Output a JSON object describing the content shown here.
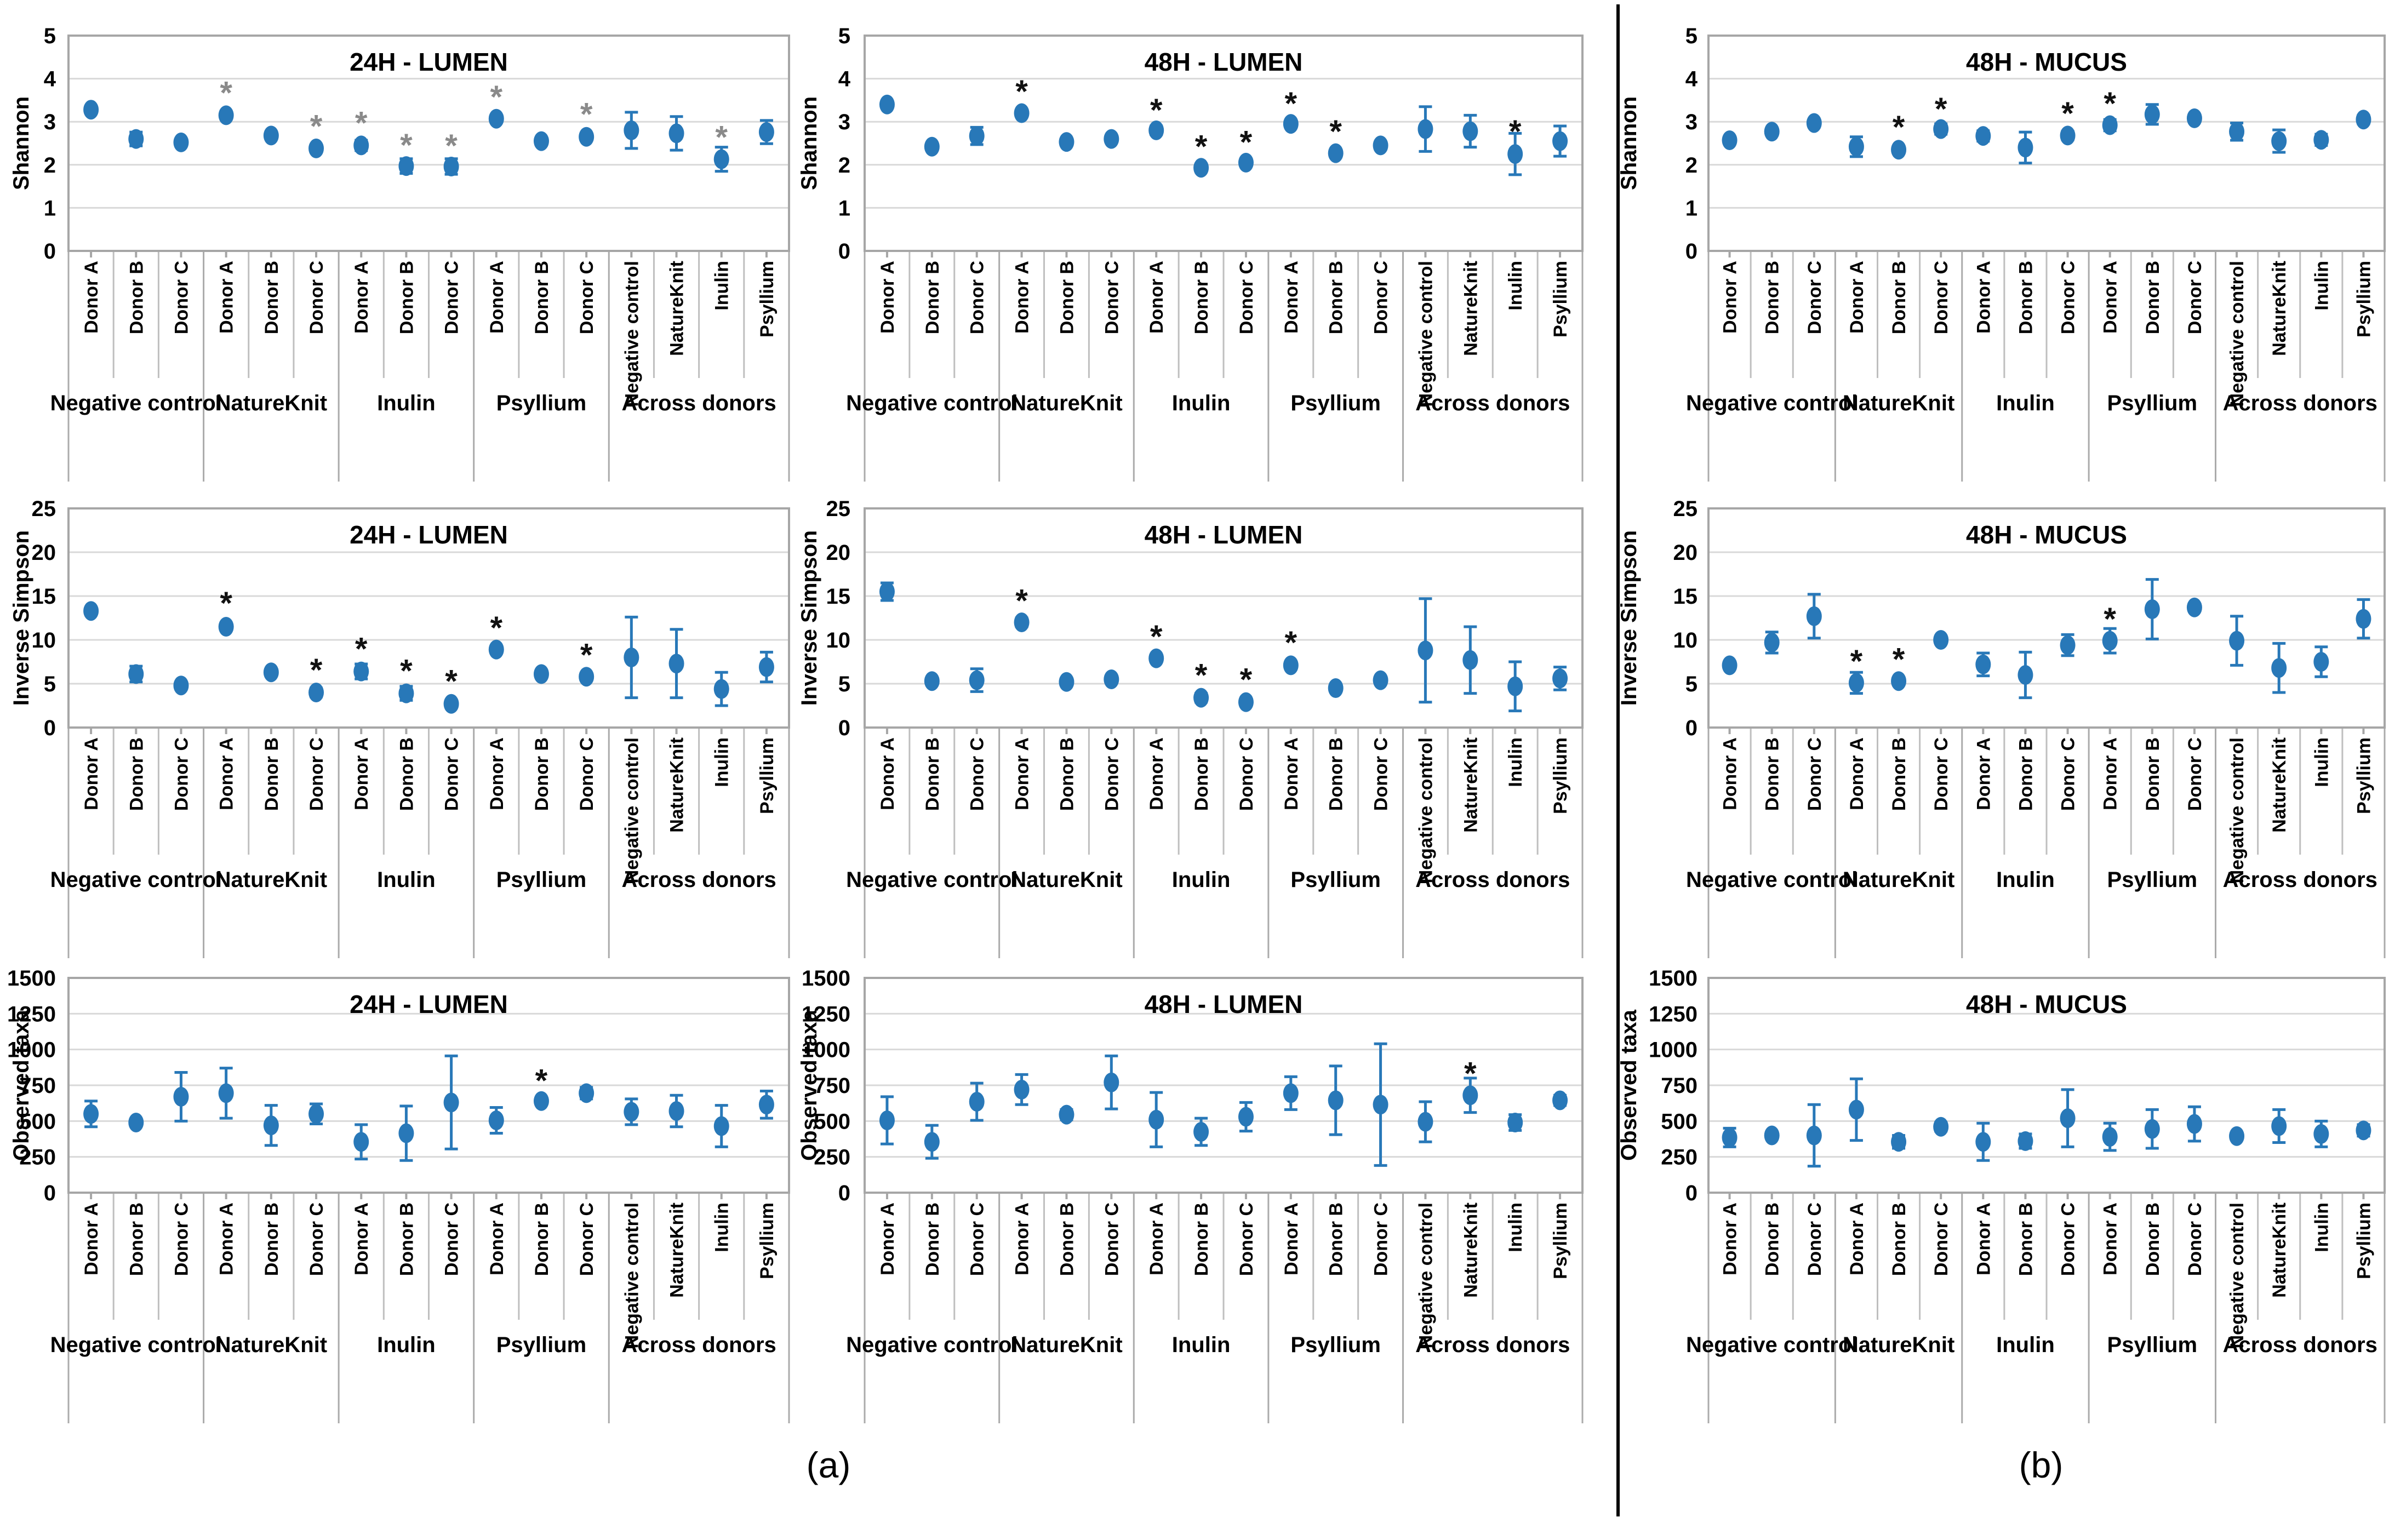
{
  "figure": {
    "panel_a_label": "(a)",
    "panel_b_label": "(b)"
  },
  "colors": {
    "marker": "#2878B8",
    "error_bar": "#2878B8",
    "asterisk_black": "#111111",
    "asterisk_gray": "#8a8a8a",
    "gridline": "#D9D9D9",
    "plot_border": "#A6A6A6",
    "category_line": "#BFBFBF",
    "group_line": "#ABABAB",
    "tick_stub": "#A6A6A6",
    "text": "#000000",
    "background": "#FFFFFF"
  },
  "categories": {
    "donor_labels": [
      "Donor A",
      "Donor B",
      "Donor C",
      "Donor A",
      "Donor B",
      "Donor C",
      "Donor A",
      "Donor B",
      "Donor C",
      "Donor A",
      "Donor B",
      "Donor C",
      "Negative control",
      "NatureKnit",
      "Inulin",
      "Psyllium"
    ],
    "groups": [
      {
        "label": "Negative control",
        "span": 3
      },
      {
        "label": "NatureKnit",
        "span": 3
      },
      {
        "label": "Inulin",
        "span": 3
      },
      {
        "label": "Psyllium",
        "span": 3
      },
      {
        "label": "Across donors",
        "span": 4
      }
    ]
  },
  "chart_data": [
    {
      "type": "scatter",
      "panel": "a",
      "row": 0,
      "col": 0,
      "title": "24H - LUMEN",
      "ylabel": "Shannon",
      "ylim": [
        0,
        5
      ],
      "ystep": 1,
      "grid": true,
      "sig_color": "gray",
      "points": [
        {
          "v": 3.28,
          "e": 0,
          "s": null
        },
        {
          "v": 2.6,
          "e": 0.16,
          "s": null
        },
        {
          "v": 2.52,
          "e": 0,
          "s": null
        },
        {
          "v": 3.15,
          "e": 0,
          "s": 3.8
        },
        {
          "v": 2.68,
          "e": 0,
          "s": null
        },
        {
          "v": 2.38,
          "e": 0,
          "s": 3.02
        },
        {
          "v": 2.45,
          "e": 0.12,
          "s": 3.1
        },
        {
          "v": 1.97,
          "e": 0.17,
          "s": 2.58
        },
        {
          "v": 1.96,
          "e": 0.18,
          "s": 2.57
        },
        {
          "v": 3.07,
          "e": 0,
          "s": 3.7
        },
        {
          "v": 2.55,
          "e": 0,
          "s": null
        },
        {
          "v": 2.65,
          "e": 0,
          "s": 3.3
        },
        {
          "v": 2.8,
          "e": 0.42,
          "s": null
        },
        {
          "v": 2.73,
          "e": 0.39,
          "s": null
        },
        {
          "v": 2.13,
          "e": 0.28,
          "s": 2.77
        },
        {
          "v": 2.76,
          "e": 0.27,
          "s": null
        }
      ]
    },
    {
      "type": "scatter",
      "panel": "a",
      "row": 0,
      "col": 1,
      "title": "48H - LUMEN",
      "ylabel": "Shannon",
      "ylim": [
        0,
        5
      ],
      "ystep": 1,
      "grid": true,
      "sig_color": "black",
      "points": [
        {
          "v": 3.4,
          "e": 0,
          "s": null
        },
        {
          "v": 2.42,
          "e": 0,
          "s": null
        },
        {
          "v": 2.67,
          "e": 0.2,
          "s": null
        },
        {
          "v": 3.2,
          "e": 0,
          "s": 3.83
        },
        {
          "v": 2.53,
          "e": 0,
          "s": null
        },
        {
          "v": 2.6,
          "e": 0,
          "s": null
        },
        {
          "v": 2.8,
          "e": 0.1,
          "s": 3.4
        },
        {
          "v": 1.93,
          "e": 0.08,
          "s": 2.55
        },
        {
          "v": 2.05,
          "e": 0.07,
          "s": 2.65
        },
        {
          "v": 2.95,
          "e": 0,
          "s": 3.55
        },
        {
          "v": 2.27,
          "e": 0.06,
          "s": 2.9
        },
        {
          "v": 2.45,
          "e": 0,
          "s": null
        },
        {
          "v": 2.83,
          "e": 0.52,
          "s": null
        },
        {
          "v": 2.78,
          "e": 0.37,
          "s": null
        },
        {
          "v": 2.25,
          "e": 0.48,
          "s": 2.9
        },
        {
          "v": 2.55,
          "e": 0.35,
          "s": null
        }
      ]
    },
    {
      "type": "scatter",
      "panel": "b",
      "row": 0,
      "col": 2,
      "title": "48H - MUCUS",
      "ylabel": "Shannon",
      "ylim": [
        0,
        5
      ],
      "ystep": 1,
      "grid": true,
      "sig_color": "black",
      "points": [
        {
          "v": 2.57,
          "e": 0.07,
          "s": null
        },
        {
          "v": 2.77,
          "e": 0.06,
          "s": null
        },
        {
          "v": 2.97,
          "e": 0.08,
          "s": null
        },
        {
          "v": 2.42,
          "e": 0.23,
          "s": null
        },
        {
          "v": 2.35,
          "e": 0.08,
          "s": 3.0
        },
        {
          "v": 2.83,
          "e": 0.12,
          "s": 3.42
        },
        {
          "v": 2.67,
          "e": 0.12,
          "s": null
        },
        {
          "v": 2.4,
          "e": 0.36,
          "s": null
        },
        {
          "v": 2.68,
          "e": 0.1,
          "s": 3.32
        },
        {
          "v": 2.92,
          "e": 0.13,
          "s": 3.55
        },
        {
          "v": 3.17,
          "e": 0.23,
          "s": null
        },
        {
          "v": 3.08,
          "e": 0.08,
          "s": null
        },
        {
          "v": 2.77,
          "e": 0.2,
          "s": null
        },
        {
          "v": 2.55,
          "e": 0.26,
          "s": null
        },
        {
          "v": 2.58,
          "e": 0.13,
          "s": null
        },
        {
          "v": 3.05,
          "e": 0.1,
          "s": null
        }
      ]
    },
    {
      "type": "scatter",
      "panel": "a",
      "row": 1,
      "col": 0,
      "title": "24H - LUMEN",
      "ylabel": "Inverse Simpson",
      "ylim": [
        0,
        25
      ],
      "ystep": 5,
      "grid": true,
      "sig_color": "black",
      "points": [
        {
          "v": 13.3,
          "e": 0,
          "s": null
        },
        {
          "v": 6.1,
          "e": 0.9,
          "s": null
        },
        {
          "v": 4.8,
          "e": 0.3,
          "s": null
        },
        {
          "v": 11.5,
          "e": 0.4,
          "s": 14.8
        },
        {
          "v": 6.3,
          "e": 0.3,
          "s": null
        },
        {
          "v": 4.0,
          "e": 0.5,
          "s": 7.2
        },
        {
          "v": 6.4,
          "e": 0.85,
          "s": 9.6
        },
        {
          "v": 3.9,
          "e": 0.8,
          "s": 7.1
        },
        {
          "v": 2.7,
          "e": 0.35,
          "s": 5.9
        },
        {
          "v": 8.9,
          "e": 0.3,
          "s": 12.0
        },
        {
          "v": 6.1,
          "e": 0.3,
          "s": null
        },
        {
          "v": 5.8,
          "e": 0.4,
          "s": 8.9
        },
        {
          "v": 8.0,
          "e": 4.6,
          "s": null
        },
        {
          "v": 7.3,
          "e": 3.9,
          "s": null
        },
        {
          "v": 4.4,
          "e": 1.9,
          "s": null
        },
        {
          "v": 6.9,
          "e": 1.7,
          "s": null
        }
      ]
    },
    {
      "type": "scatter",
      "panel": "a",
      "row": 1,
      "col": 1,
      "title": "48H - LUMEN",
      "ylabel": "Inverse Simpson",
      "ylim": [
        0,
        25
      ],
      "ystep": 5,
      "grid": true,
      "sig_color": "black",
      "points": [
        {
          "v": 15.5,
          "e": 1.0,
          "s": null
        },
        {
          "v": 5.3,
          "e": 0.3,
          "s": null
        },
        {
          "v": 5.4,
          "e": 1.3,
          "s": null
        },
        {
          "v": 12.0,
          "e": 0.5,
          "s": 15.1
        },
        {
          "v": 5.2,
          "e": 0.3,
          "s": null
        },
        {
          "v": 5.5,
          "e": 0.3,
          "s": null
        },
        {
          "v": 7.9,
          "e": 0.4,
          "s": 11.0
        },
        {
          "v": 3.4,
          "e": 0.5,
          "s": 6.6
        },
        {
          "v": 2.9,
          "e": 0.4,
          "s": 6.1
        },
        {
          "v": 7.1,
          "e": 0.3,
          "s": 10.3
        },
        {
          "v": 4.5,
          "e": 0.3,
          "s": null
        },
        {
          "v": 5.4,
          "e": 0.3,
          "s": null
        },
        {
          "v": 8.8,
          "e": 5.9,
          "s": null
        },
        {
          "v": 7.7,
          "e": 3.8,
          "s": null
        },
        {
          "v": 4.7,
          "e": 2.8,
          "s": null
        },
        {
          "v": 5.6,
          "e": 1.3,
          "s": null
        }
      ]
    },
    {
      "type": "scatter",
      "panel": "b",
      "row": 1,
      "col": 2,
      "title": "48H - MUCUS",
      "ylabel": "Inverse Simpson",
      "ylim": [
        0,
        25
      ],
      "ystep": 5,
      "grid": true,
      "sig_color": "black",
      "points": [
        {
          "v": 7.1,
          "e": 0.3,
          "s": null
        },
        {
          "v": 9.7,
          "e": 1.2,
          "s": null
        },
        {
          "v": 12.7,
          "e": 2.5,
          "s": null
        },
        {
          "v": 5.1,
          "e": 1.2,
          "s": 8.2
        },
        {
          "v": 5.3,
          "e": 0.4,
          "s": 8.4
        },
        {
          "v": 10.0,
          "e": 0.4,
          "s": null
        },
        {
          "v": 7.2,
          "e": 1.3,
          "s": null
        },
        {
          "v": 6.0,
          "e": 2.6,
          "s": null
        },
        {
          "v": 9.4,
          "e": 1.2,
          "s": null
        },
        {
          "v": 9.9,
          "e": 1.4,
          "s": 13.0
        },
        {
          "v": 13.5,
          "e": 3.4,
          "s": null
        },
        {
          "v": 13.7,
          "e": 0.3,
          "s": null
        },
        {
          "v": 9.9,
          "e": 2.8,
          "s": null
        },
        {
          "v": 6.8,
          "e": 2.8,
          "s": null
        },
        {
          "v": 7.5,
          "e": 1.7,
          "s": null
        },
        {
          "v": 12.4,
          "e": 2.2,
          "s": null
        }
      ]
    },
    {
      "type": "scatter",
      "panel": "a",
      "row": 2,
      "col": 0,
      "title": "24H - LUMEN",
      "ylabel": "Observed taxa",
      "ylim": [
        0,
        1500
      ],
      "ystep": 250,
      "grid": true,
      "sig_color": "black",
      "points": [
        {
          "v": 550,
          "e": 90,
          "s": null
        },
        {
          "v": 490,
          "e": 0,
          "s": null
        },
        {
          "v": 670,
          "e": 170,
          "s": null
        },
        {
          "v": 695,
          "e": 175,
          "s": null
        },
        {
          "v": 470,
          "e": 140,
          "s": null
        },
        {
          "v": 550,
          "e": 70,
          "s": null
        },
        {
          "v": 355,
          "e": 120,
          "s": null
        },
        {
          "v": 415,
          "e": 190,
          "s": null
        },
        {
          "v": 630,
          "e": 325,
          "s": null
        },
        {
          "v": 505,
          "e": 90,
          "s": null
        },
        {
          "v": 640,
          "e": 25,
          "s": 820
        },
        {
          "v": 695,
          "e": 40,
          "s": null
        },
        {
          "v": 565,
          "e": 90,
          "s": null
        },
        {
          "v": 570,
          "e": 110,
          "s": null
        },
        {
          "v": 465,
          "e": 145,
          "s": null
        },
        {
          "v": 615,
          "e": 95,
          "s": null
        }
      ]
    },
    {
      "type": "scatter",
      "panel": "a",
      "row": 2,
      "col": 1,
      "title": "48H - LUMEN",
      "ylabel": "Observed taxa",
      "ylim": [
        0,
        1500
      ],
      "ystep": 250,
      "grid": true,
      "sig_color": "black",
      "points": [
        {
          "v": 505,
          "e": 165,
          "s": null
        },
        {
          "v": 355,
          "e": 115,
          "s": null
        },
        {
          "v": 635,
          "e": 130,
          "s": null
        },
        {
          "v": 720,
          "e": 105,
          "s": null
        },
        {
          "v": 545,
          "e": 35,
          "s": null
        },
        {
          "v": 770,
          "e": 185,
          "s": null
        },
        {
          "v": 510,
          "e": 190,
          "s": null
        },
        {
          "v": 425,
          "e": 95,
          "s": null
        },
        {
          "v": 530,
          "e": 100,
          "s": null
        },
        {
          "v": 695,
          "e": 115,
          "s": null
        },
        {
          "v": 645,
          "e": 240,
          "s": null
        },
        {
          "v": 615,
          "e": 425,
          "s": null
        },
        {
          "v": 495,
          "e": 140,
          "s": null
        },
        {
          "v": 680,
          "e": 120,
          "s": 870
        },
        {
          "v": 490,
          "e": 55,
          "s": null
        },
        {
          "v": 645,
          "e": 35,
          "s": null
        }
      ]
    },
    {
      "type": "scatter",
      "panel": "b",
      "row": 2,
      "col": 2,
      "title": "48H - MUCUS",
      "ylabel": "Observed taxa",
      "ylim": [
        0,
        1500
      ],
      "ystep": 250,
      "grid": true,
      "sig_color": "black",
      "points": [
        {
          "v": 385,
          "e": 65,
          "s": null
        },
        {
          "v": 400,
          "e": 20,
          "s": null
        },
        {
          "v": 400,
          "e": 215,
          "s": null
        },
        {
          "v": 580,
          "e": 215,
          "s": null
        },
        {
          "v": 355,
          "e": 45,
          "s": null
        },
        {
          "v": 460,
          "e": 30,
          "s": null
        },
        {
          "v": 355,
          "e": 130,
          "s": null
        },
        {
          "v": 360,
          "e": 50,
          "s": null
        },
        {
          "v": 520,
          "e": 200,
          "s": null
        },
        {
          "v": 390,
          "e": 95,
          "s": null
        },
        {
          "v": 445,
          "e": 135,
          "s": null
        },
        {
          "v": 480,
          "e": 120,
          "s": null
        },
        {
          "v": 395,
          "e": 20,
          "s": null
        },
        {
          "v": 465,
          "e": 115,
          "s": null
        },
        {
          "v": 410,
          "e": 90,
          "s": null
        },
        {
          "v": 435,
          "e": 40,
          "s": null
        }
      ]
    }
  ]
}
